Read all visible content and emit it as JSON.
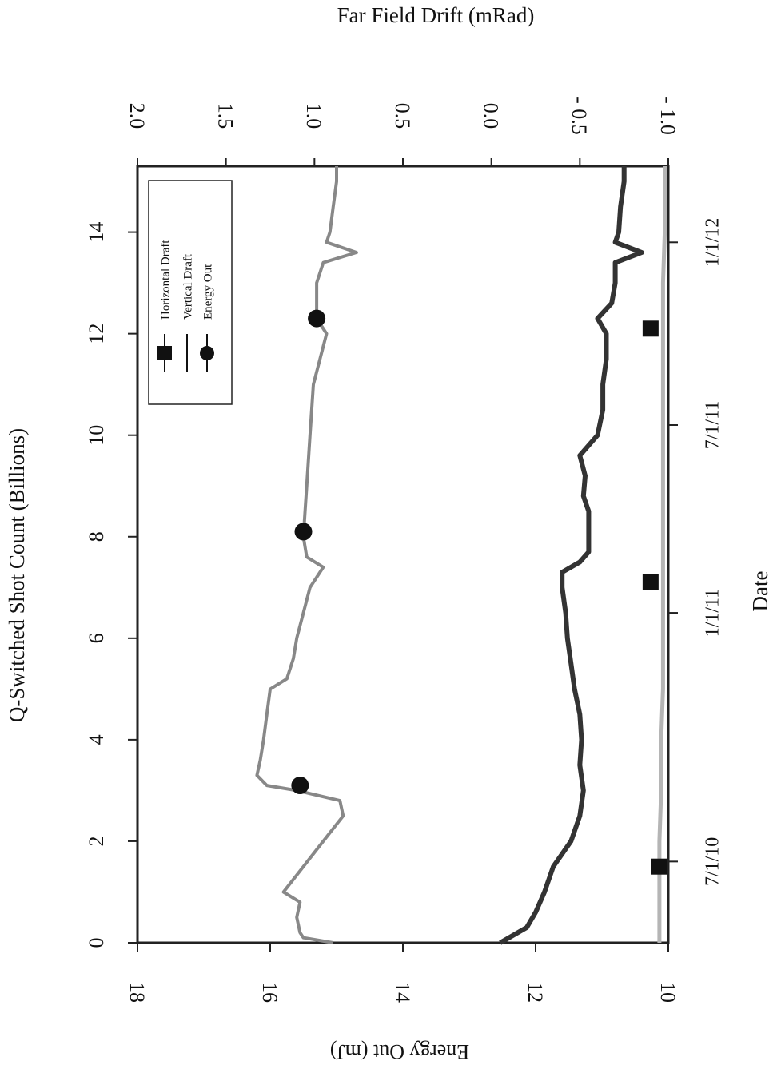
{
  "chart_data": {
    "type": "line",
    "rotation_deg": 90,
    "title_top_axis": "Far Field Drift (mRad)",
    "xlabel_shots": "Q-Switched Shot Count (Billions)",
    "xlim_shots": [
      0,
      15.3
    ],
    "xticks_shots": [
      0,
      2,
      4,
      6,
      8,
      10,
      12,
      14
    ],
    "xlabel_date": "Date",
    "date_ticks": [
      {
        "label": "7/1/10",
        "shots": 1.6
      },
      {
        "label": "1/1/11",
        "shots": 6.5
      },
      {
        "label": "7/1/11",
        "shots": 10.2
      },
      {
        "label": "1/1/12",
        "shots": 13.8
      }
    ],
    "ylabel_energy": "Energy Out (mJ)",
    "ylim_energy": [
      10,
      18
    ],
    "yticks_energy": [
      10,
      12,
      14,
      16,
      18
    ],
    "ylabel_drift": "Far Field Drift (mRad)",
    "ylim_drift": [
      -1.0,
      2.0
    ],
    "yticks_drift": [
      {
        "v": 2.0,
        "label": "2.0"
      },
      {
        "v": 1.5,
        "label": "1.5"
      },
      {
        "v": 1.0,
        "label": "1.0"
      },
      {
        "v": 0.5,
        "label": "0.5"
      },
      {
        "v": 0.0,
        "label": "0.0"
      },
      {
        "v": -0.5,
        "label": "- 0.5"
      },
      {
        "v": -1.0,
        "label": "- 1.0"
      }
    ],
    "legend": {
      "placement": "top-left",
      "entries": [
        "Horizontal Draft",
        "Vertical Draft",
        "Energy Out"
      ]
    },
    "series": [
      {
        "name": "Energy Out",
        "axis": "energy",
        "color": "#888888",
        "x": [
          0,
          0.1,
          0.2,
          0.5,
          0.8,
          1.0,
          1.5,
          2.0,
          2.5,
          2.8,
          3.0,
          3.1,
          3.3,
          3.6,
          4.0,
          4.5,
          5.0,
          5.2,
          5.6,
          6.0,
          6.5,
          7.0,
          7.4,
          7.6,
          8.0,
          9.0,
          10.0,
          11.0,
          12.0,
          12.3,
          12.6,
          13.0,
          13.4,
          13.6,
          13.8,
          14.0,
          14.5,
          15.0,
          15.3
        ],
        "y": [
          15.05,
          15.5,
          15.55,
          15.6,
          15.55,
          15.8,
          15.5,
          15.2,
          14.9,
          14.95,
          15.6,
          16.05,
          16.2,
          16.15,
          16.1,
          16.05,
          16.0,
          15.75,
          15.65,
          15.6,
          15.5,
          15.4,
          15.2,
          15.45,
          15.5,
          15.45,
          15.4,
          15.35,
          15.15,
          15.3,
          15.3,
          15.3,
          15.2,
          14.7,
          15.15,
          15.1,
          15.05,
          15.0,
          15.0
        ]
      },
      {
        "name": "Vertical Draft",
        "axis": "drift",
        "color": "#333333",
        "x": [
          0,
          0.1,
          0.3,
          0.6,
          1.0,
          1.5,
          2.0,
          2.5,
          3.0,
          3.5,
          4.0,
          4.5,
          5.0,
          5.5,
          6.0,
          6.5,
          7.0,
          7.3,
          7.5,
          7.7,
          8.0,
          8.5,
          8.8,
          9.2,
          9.6,
          10.0,
          10.5,
          11.0,
          11.5,
          12.0,
          12.3,
          12.6,
          13.0,
          13.4,
          13.6,
          13.8,
          14.0,
          14.5,
          15.0,
          15.3
        ],
        "y": [
          -0.05,
          -0.1,
          -0.2,
          -0.25,
          -0.3,
          -0.35,
          -0.45,
          -0.5,
          -0.52,
          -0.5,
          -0.51,
          -0.5,
          -0.47,
          -0.45,
          -0.43,
          -0.42,
          -0.4,
          -0.4,
          -0.5,
          -0.55,
          -0.55,
          -0.55,
          -0.52,
          -0.53,
          -0.5,
          -0.6,
          -0.63,
          -0.63,
          -0.65,
          -0.65,
          -0.6,
          -0.68,
          -0.7,
          -0.7,
          -0.85,
          -0.7,
          -0.72,
          -0.73,
          -0.75,
          -0.75
        ]
      },
      {
        "name": "Horizontal Draft",
        "axis": "drift",
        "color": "#b5b5b5",
        "x": [
          0,
          1.0,
          2.0,
          3.0,
          4.0,
          5.0,
          6.0,
          7.0,
          8.0,
          9.0,
          10.0,
          11.0,
          12.0,
          13.0,
          14.0,
          15.3
        ],
        "y": [
          -0.95,
          -0.95,
          -0.95,
          -0.96,
          -0.96,
          -0.97,
          -0.97,
          -0.97,
          -0.97,
          -0.97,
          -0.97,
          -0.97,
          -0.97,
          -0.97,
          -0.98,
          -0.98
        ]
      }
    ],
    "markers": {
      "energy_circles": [
        {
          "x": 3.1,
          "y": 15.55
        },
        {
          "x": 8.1,
          "y": 15.5
        },
        {
          "x": 12.3,
          "y": 15.3
        }
      ],
      "drift_squares": [
        {
          "x": 1.5,
          "y": -0.95
        },
        {
          "x": 7.1,
          "y": -0.9
        },
        {
          "x": 12.1,
          "y": -0.9
        }
      ]
    }
  }
}
